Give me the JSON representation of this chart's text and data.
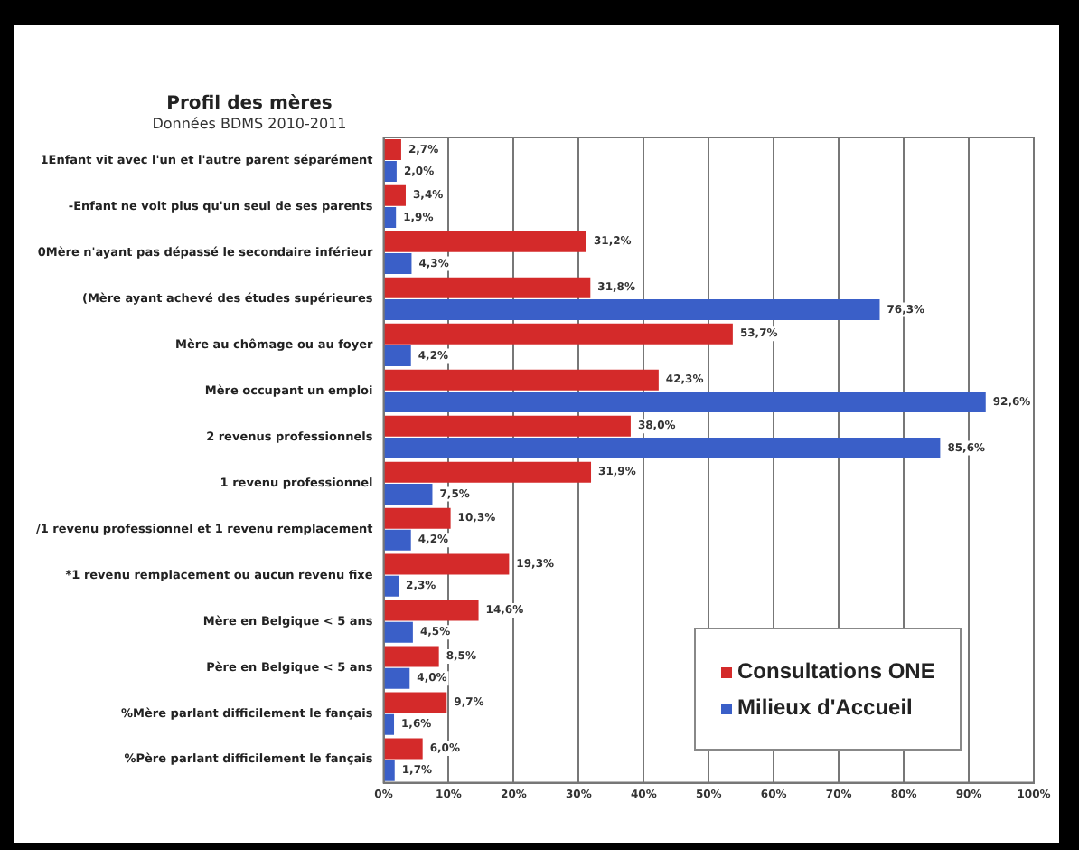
{
  "chart_data": {
    "type": "bar",
    "orientation": "horizontal",
    "title": "Profil des mères",
    "subtitle": "Données BDMS 2010-2011",
    "categories": [
      "1Enfant vit avec l'un et l'autre parent séparément",
      "-Enfant ne voit plus qu'un seul de ses parents",
      "0Mère n'ayant pas dépassé le secondaire inférieur",
      "(Mère ayant achevé des études supérieures",
      "Mère au chômage ou au foyer",
      "Mère occupant un emploi",
      "2 revenus professionnels",
      "1 revenu professionnel",
      "/1 revenu professionnel et 1 revenu remplacement",
      "*1 revenu remplacement ou aucun revenu fixe",
      "Mère en Belgique < 5 ans",
      "Père en Belgique < 5 ans",
      "%Mère parlant difficilement le fançais",
      "%Père parlant difficilement le fançais"
    ],
    "series": [
      {
        "name": "Consultations ONE",
        "color": "#d42a2a",
        "values": [
          2.7,
          3.4,
          31.2,
          31.8,
          53.7,
          42.3,
          38.0,
          31.9,
          10.3,
          19.3,
          14.6,
          8.5,
          9.7,
          6.0
        ],
        "value_labels": [
          "2,7%",
          "3,4%",
          "31,2%",
          "31,8%",
          "53,7%",
          "42,3%",
          "38,0%",
          "31,9%",
          "10,3%",
          "19,3%",
          "14,6%",
          "8,5%",
          "9,7%",
          "6,0%"
        ]
      },
      {
        "name": "Milieux d'Accueil",
        "color": "#3a5fc8",
        "values": [
          2.0,
          1.9,
          4.3,
          76.3,
          4.2,
          92.6,
          85.6,
          7.5,
          4.2,
          2.3,
          4.5,
          4.0,
          1.6,
          1.7
        ],
        "value_labels": [
          "2,0%",
          "1,9%",
          "4,3%",
          "76,3%",
          "4,2%",
          "92,6%",
          "85,6%",
          "7,5%",
          "4,2%",
          "2,3%",
          "4,5%",
          "4,0%",
          "1,6%",
          "1,7%"
        ]
      }
    ],
    "xlim": [
      0,
      100
    ],
    "xticks": [
      {
        "value": 0,
        "label": "0%"
      },
      {
        "value": 10,
        "label": "10%"
      },
      {
        "value": 20,
        "label": "20%"
      },
      {
        "value": 30,
        "label": "30%"
      },
      {
        "value": 40,
        "label": "40%"
      },
      {
        "value": 50,
        "label": "50%"
      },
      {
        "value": 60,
        "label": "60%"
      },
      {
        "value": 70,
        "label": "70%"
      },
      {
        "value": 80,
        "label": "80%"
      },
      {
        "value": 90,
        "label": "90%"
      },
      {
        "value": 100,
        "label": "100%"
      }
    ],
    "grid": "x",
    "legend": "bottom right"
  }
}
